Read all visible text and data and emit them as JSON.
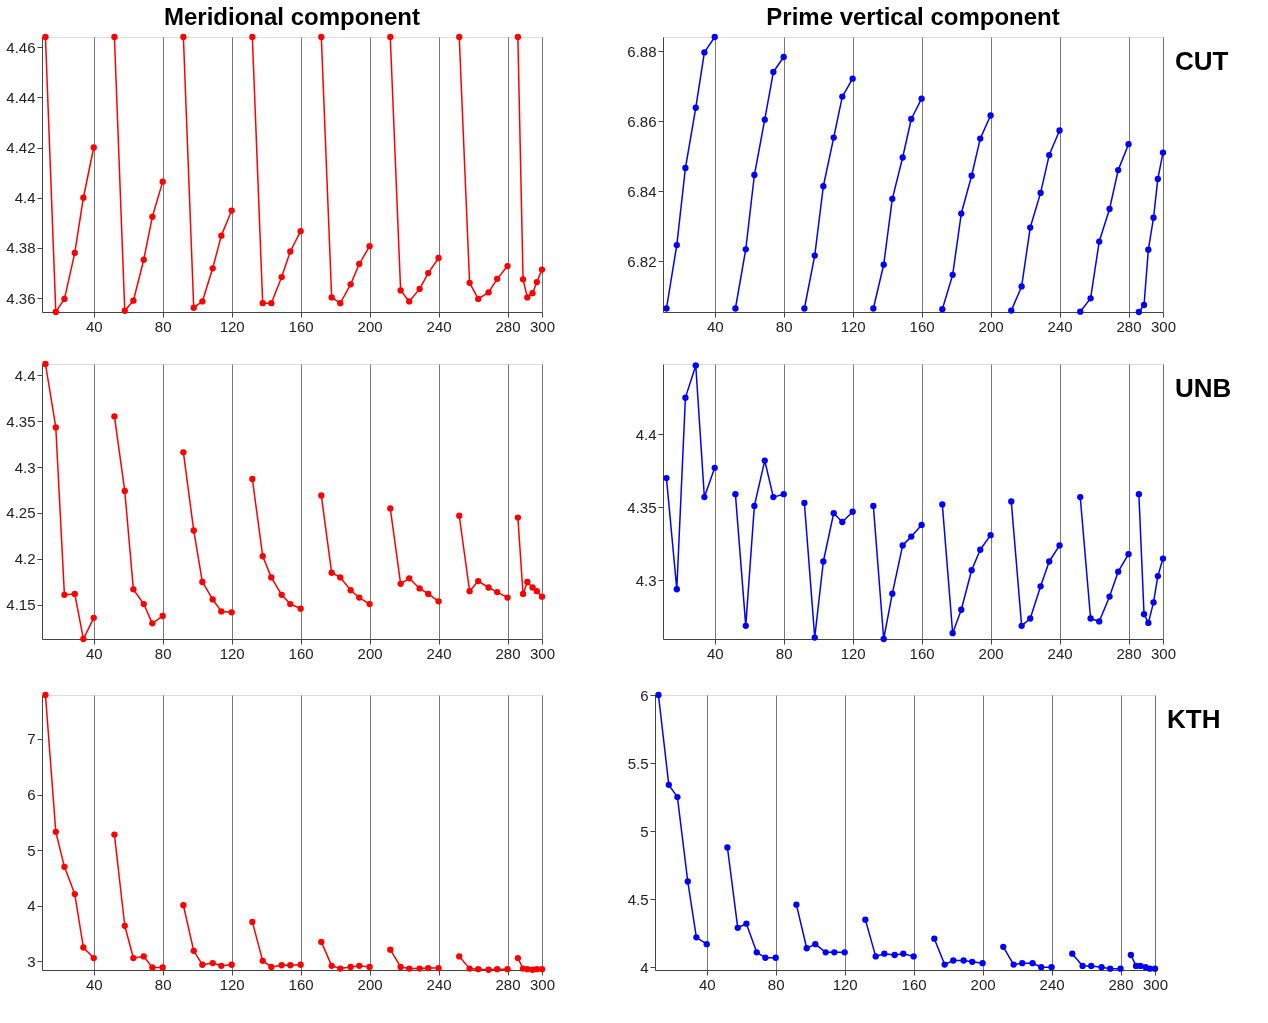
{
  "chart_data": [
    {
      "type": "line",
      "title": "Meridional component",
      "marker": "circle",
      "grid": "x",
      "legend": false,
      "xlim": [
        10,
        300
      ],
      "xticks": [
        40,
        80,
        120,
        160,
        200,
        240,
        280,
        300
      ],
      "ylim": [
        4.3545,
        4.464
      ],
      "yticks": [
        4.36,
        4.38,
        {
          "value": 4.4,
          "label": "4.4"
        },
        4.42,
        4.44,
        4.46
      ],
      "series": [
        {
          "color": "#ff0000",
          "x": [
            12,
            18,
            23,
            29,
            34,
            40
          ],
          "values": [
            4.464,
            4.3545,
            4.3597,
            4.378,
            4.4,
            4.42
          ]
        },
        {
          "color": "#ff0000",
          "x": [
            52,
            58,
            63,
            69,
            74,
            80
          ],
          "values": [
            4.464,
            4.355,
            4.359,
            4.3753,
            4.3924,
            4.4064
          ]
        },
        {
          "color": "#ff0000",
          "x": [
            92,
            98,
            103,
            109,
            114,
            120
          ],
          "values": [
            4.464,
            4.3562,
            4.3587,
            4.3719,
            4.3849,
            4.3949
          ]
        },
        {
          "color": "#ff0000",
          "x": [
            132,
            138,
            143,
            149,
            154,
            160
          ],
          "values": [
            4.464,
            4.358,
            4.358,
            4.3684,
            4.3786,
            4.3867
          ]
        },
        {
          "color": "#ff0000",
          "x": [
            172,
            178,
            183,
            189,
            194,
            200
          ],
          "values": [
            4.464,
            4.3603,
            4.358,
            4.3655,
            4.3736,
            4.3807
          ]
        },
        {
          "color": "#ff0000",
          "x": [
            212,
            218,
            223,
            229,
            234,
            240
          ],
          "values": [
            4.464,
            4.3631,
            4.3587,
            4.3637,
            4.37,
            4.376
          ]
        },
        {
          "color": "#ff0000",
          "x": [
            252,
            258,
            263,
            269,
            274,
            280
          ],
          "values": [
            4.464,
            4.3661,
            4.3597,
            4.3623,
            4.3677,
            4.3728
          ]
        },
        {
          "color": "#ff0000",
          "x": [
            286,
            289,
            291.5,
            294.5,
            297,
            300
          ],
          "values": [
            4.464,
            4.3675,
            4.3603,
            4.362,
            4.3664,
            4.3714
          ]
        }
      ]
    },
    {
      "type": "line",
      "title": "Prime vertical component",
      "annotations": [
        "CUT"
      ],
      "marker": "circle",
      "grid": "x",
      "legend": false,
      "xlim": [
        10,
        300
      ],
      "xticks": [
        40,
        80,
        120,
        160,
        200,
        240,
        280,
        300
      ],
      "ylim": [
        6.8055,
        6.884
      ],
      "yticks": [
        6.82,
        6.84,
        6.86,
        6.88
      ],
      "series": [
        {
          "color": "#0000ff",
          "x": [
            12,
            18,
            23,
            29,
            34,
            40
          ],
          "values": [
            6.8065,
            6.8246,
            6.8466,
            6.8638,
            6.8796,
            6.884
          ]
        },
        {
          "color": "#0000ff",
          "x": [
            52,
            58,
            63,
            69,
            74,
            80
          ],
          "values": [
            6.8065,
            6.8234,
            6.8446,
            6.8604,
            6.874,
            6.8783
          ]
        },
        {
          "color": "#0000ff",
          "x": [
            92,
            98,
            103,
            109,
            114,
            120
          ],
          "values": [
            6.8065,
            6.8216,
            6.8414,
            6.8553,
            6.867,
            6.8721
          ]
        },
        {
          "color": "#0000ff",
          "x": [
            132,
            138,
            143,
            149,
            154,
            160
          ],
          "values": [
            6.8065,
            6.819,
            6.8378,
            6.8496,
            6.8606,
            6.8664
          ]
        },
        {
          "color": "#0000ff",
          "x": [
            172,
            178,
            183,
            189,
            194,
            200
          ],
          "values": [
            6.8063,
            6.8161,
            6.8336,
            6.8444,
            6.855,
            6.8616
          ]
        },
        {
          "color": "#0000ff",
          "x": [
            212,
            218,
            223,
            229,
            234,
            240
          ],
          "values": [
            6.8059,
            6.8128,
            6.8296,
            6.8395,
            6.8503,
            6.8573
          ]
        },
        {
          "color": "#0000ff",
          "x": [
            252,
            258,
            263,
            269,
            274,
            280
          ],
          "values": [
            6.8056,
            6.8094,
            6.8256,
            6.8349,
            6.846,
            6.8534
          ]
        },
        {
          "color": "#0000ff",
          "x": [
            286,
            289,
            291.5,
            294.5,
            297,
            300
          ],
          "values": [
            6.8055,
            6.8075,
            6.8233,
            6.8324,
            6.8435,
            6.851
          ]
        }
      ]
    },
    {
      "type": "line",
      "marker": "circle",
      "grid": "x",
      "legend": false,
      "xlim": [
        10,
        300
      ],
      "xticks": [
        40,
        80,
        120,
        160,
        200,
        240,
        280,
        300
      ],
      "ylim": [
        4.113,
        4.412
      ],
      "yticks": [
        4.15,
        {
          "value": 4.2,
          "label": "4.2"
        },
        4.25,
        {
          "value": 4.3,
          "label": "4.3"
        },
        4.35,
        {
          "value": 4.4,
          "label": "4.4"
        }
      ],
      "series": [
        {
          "color": "#ff0000",
          "x": [
            12,
            18,
            23,
            29,
            34,
            40
          ],
          "values": [
            4.412,
            4.343,
            4.161,
            4.162,
            4.113,
            4.136
          ]
        },
        {
          "color": "#ff0000",
          "x": [
            52,
            58,
            63,
            69,
            74,
            80
          ],
          "values": [
            4.355,
            4.274,
            4.167,
            4.151,
            4.13,
            4.138
          ]
        },
        {
          "color": "#ff0000",
          "x": [
            92,
            98,
            103,
            109,
            114,
            120
          ],
          "values": [
            4.316,
            4.231,
            4.175,
            4.156,
            4.143,
            4.142
          ]
        },
        {
          "color": "#ff0000",
          "x": [
            132,
            138,
            143,
            149,
            154,
            160
          ],
          "values": [
            4.287,
            4.203,
            4.18,
            4.161,
            4.151,
            4.146
          ]
        },
        {
          "color": "#ff0000",
          "x": [
            172,
            178,
            183,
            189,
            194,
            200
          ],
          "values": [
            4.269,
            4.185,
            4.18,
            4.166,
            4.158,
            4.151
          ]
        },
        {
          "color": "#ff0000",
          "x": [
            212,
            218,
            223,
            229,
            234,
            240
          ],
          "values": [
            4.255,
            4.173,
            4.179,
            4.168,
            4.162,
            4.154
          ]
        },
        {
          "color": "#ff0000",
          "x": [
            252,
            258,
            263,
            269,
            274,
            280
          ],
          "values": [
            4.247,
            4.165,
            4.176,
            4.169,
            4.164,
            4.158
          ]
        },
        {
          "color": "#ff0000",
          "x": [
            286,
            289,
            291.5,
            294.5,
            297,
            300
          ],
          "values": [
            4.245,
            4.162,
            4.175,
            4.169,
            4.165,
            4.159
          ]
        }
      ]
    },
    {
      "type": "line",
      "annotations": [
        "UNB"
      ],
      "marker": "circle",
      "grid": "x",
      "legend": false,
      "xlim": [
        10,
        300
      ],
      "xticks": [
        40,
        80,
        120,
        160,
        200,
        240,
        280,
        300
      ],
      "ylim": [
        4.26,
        4.448
      ],
      "yticks": [
        {
          "value": 4.3,
          "label": "4.3"
        },
        4.35,
        {
          "value": 4.4,
          "label": "4.4"
        }
      ],
      "series": [
        {
          "color": "#0000ff",
          "x": [
            12,
            18,
            23,
            29,
            34,
            40
          ],
          "values": [
            4.37,
            4.294,
            4.425,
            4.447,
            4.357,
            4.377
          ]
        },
        {
          "color": "#0000ff",
          "x": [
            52,
            58,
            63,
            69,
            74,
            80
          ],
          "values": [
            4.359,
            4.269,
            4.351,
            4.382,
            4.357,
            4.359
          ]
        },
        {
          "color": "#0000ff",
          "x": [
            92,
            98,
            103,
            109,
            114,
            120
          ],
          "values": [
            4.353,
            4.261,
            4.313,
            4.346,
            4.34,
            4.347
          ]
        },
        {
          "color": "#0000ff",
          "x": [
            132,
            138,
            143,
            149,
            154,
            160
          ],
          "values": [
            4.351,
            4.26,
            4.291,
            4.324,
            4.33,
            4.338
          ]
        },
        {
          "color": "#0000ff",
          "x": [
            172,
            178,
            183,
            189,
            194,
            200
          ],
          "values": [
            4.352,
            4.264,
            4.28,
            4.307,
            4.321,
            4.331
          ]
        },
        {
          "color": "#0000ff",
          "x": [
            212,
            218,
            223,
            229,
            234,
            240
          ],
          "values": [
            4.354,
            4.269,
            4.274,
            4.296,
            4.313,
            4.324
          ]
        },
        {
          "color": "#0000ff",
          "x": [
            252,
            258,
            263,
            269,
            274,
            280
          ],
          "values": [
            4.357,
            4.274,
            4.272,
            4.289,
            4.306,
            4.318
          ]
        },
        {
          "color": "#0000ff",
          "x": [
            286,
            289,
            291.5,
            294.5,
            297,
            300
          ],
          "values": [
            4.359,
            4.277,
            4.271,
            4.285,
            4.303,
            4.315
          ]
        }
      ]
    },
    {
      "type": "line",
      "marker": "circle",
      "grid": "x",
      "legend": false,
      "xlim": [
        10,
        300
      ],
      "xticks": [
        40,
        80,
        120,
        160,
        200,
        240,
        280,
        300
      ],
      "ylim": [
        2.845,
        7.79
      ],
      "yticks": [
        3,
        4,
        5,
        6,
        7
      ],
      "series": [
        {
          "color": "#ff0000",
          "x": [
            12,
            18,
            23,
            29,
            34,
            40
          ],
          "values": [
            7.79,
            5.33,
            4.7,
            4.21,
            3.25,
            3.06
          ]
        },
        {
          "color": "#ff0000",
          "x": [
            52,
            58,
            63,
            69,
            74,
            80
          ],
          "values": [
            5.28,
            3.64,
            3.06,
            3.09,
            2.89,
            2.89
          ]
        },
        {
          "color": "#ff0000",
          "x": [
            92,
            98,
            103,
            109,
            114,
            120
          ],
          "values": [
            4.01,
            3.19,
            2.94,
            2.97,
            2.92,
            2.94
          ]
        },
        {
          "color": "#ff0000",
          "x": [
            132,
            138,
            143,
            149,
            154,
            160
          ],
          "values": [
            3.71,
            3.01,
            2.9,
            2.93,
            2.93,
            2.94
          ]
        },
        {
          "color": "#ff0000",
          "x": [
            172,
            178,
            183,
            189,
            194,
            200
          ],
          "values": [
            3.35,
            2.92,
            2.87,
            2.9,
            2.92,
            2.9
          ]
        },
        {
          "color": "#ff0000",
          "x": [
            212,
            218,
            223,
            229,
            234,
            240
          ],
          "values": [
            3.21,
            2.9,
            2.87,
            2.87,
            2.88,
            2.88
          ]
        },
        {
          "color": "#ff0000",
          "x": [
            252,
            258,
            263,
            269,
            274,
            280
          ],
          "values": [
            3.09,
            2.87,
            2.86,
            2.85,
            2.86,
            2.86
          ]
        },
        {
          "color": "#ff0000",
          "x": [
            286,
            289,
            291.5,
            294.5,
            297,
            300
          ],
          "values": [
            3.06,
            2.87,
            2.86,
            2.85,
            2.86,
            2.86
          ]
        }
      ]
    },
    {
      "type": "line",
      "annotations": [
        "KTH"
      ],
      "marker": "circle",
      "grid": "x",
      "legend": false,
      "xlim": [
        10,
        300
      ],
      "xticks": [
        40,
        80,
        120,
        160,
        200,
        240,
        280,
        300
      ],
      "ylim": [
        3.98,
        6.0
      ],
      "yticks": [
        4,
        4.5,
        5,
        5.5,
        6
      ],
      "series": [
        {
          "color": "#0000ff",
          "x": [
            12,
            18,
            23,
            29,
            34,
            40
          ],
          "values": [
            6.0,
            5.34,
            5.25,
            4.63,
            4.22,
            4.17
          ]
        },
        {
          "color": "#0000ff",
          "x": [
            52,
            58,
            63,
            69,
            74,
            80
          ],
          "values": [
            4.88,
            4.29,
            4.32,
            4.11,
            4.07,
            4.07
          ]
        },
        {
          "color": "#0000ff",
          "x": [
            92,
            98,
            103,
            109,
            114,
            120
          ],
          "values": [
            4.46,
            4.14,
            4.17,
            4.11,
            4.11,
            4.11
          ]
        },
        {
          "color": "#0000ff",
          "x": [
            132,
            138,
            143,
            149,
            154,
            160
          ],
          "values": [
            4.35,
            4.08,
            4.1,
            4.09,
            4.1,
            4.08
          ]
        },
        {
          "color": "#0000ff",
          "x": [
            172,
            178,
            183,
            189,
            194,
            200
          ],
          "values": [
            4.21,
            4.02,
            4.05,
            4.05,
            4.04,
            4.03
          ]
        },
        {
          "color": "#0000ff",
          "x": [
            212,
            218,
            223,
            229,
            234,
            240
          ],
          "values": [
            4.15,
            4.02,
            4.03,
            4.03,
            4.0,
            4.0
          ]
        },
        {
          "color": "#0000ff",
          "x": [
            252,
            258,
            263,
            269,
            274,
            280
          ],
          "values": [
            4.1,
            4.01,
            4.01,
            4.0,
            3.99,
            3.99
          ]
        },
        {
          "color": "#0000ff",
          "x": [
            286,
            289,
            291.5,
            294.5,
            297,
            300
          ],
          "values": [
            4.09,
            4.01,
            4.01,
            4.0,
            3.99,
            3.99
          ]
        }
      ]
    }
  ]
}
